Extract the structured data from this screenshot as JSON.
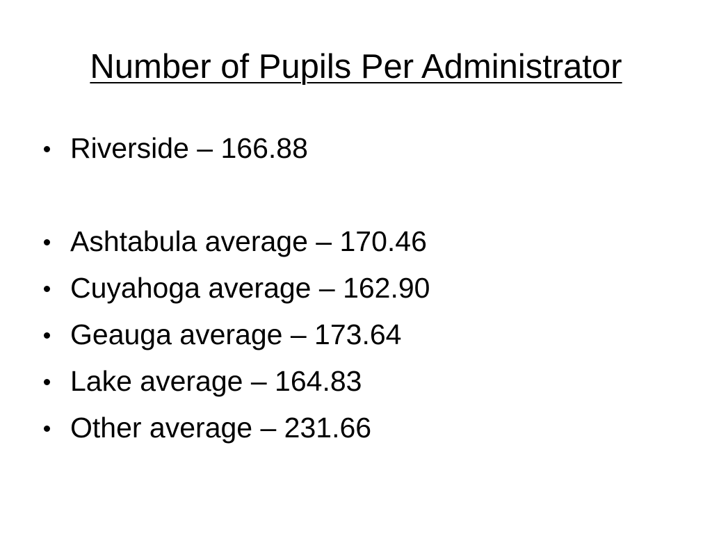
{
  "title": "Number of Pupils Per Administrator",
  "groups": [
    [
      "Riverside – 166.88"
    ],
    [
      "Ashtabula average – 170.46",
      "Cuyahoga average – 162.90",
      "Geauga average – 173.64",
      "Lake average – 164.83",
      "Other average – 231.66"
    ]
  ]
}
